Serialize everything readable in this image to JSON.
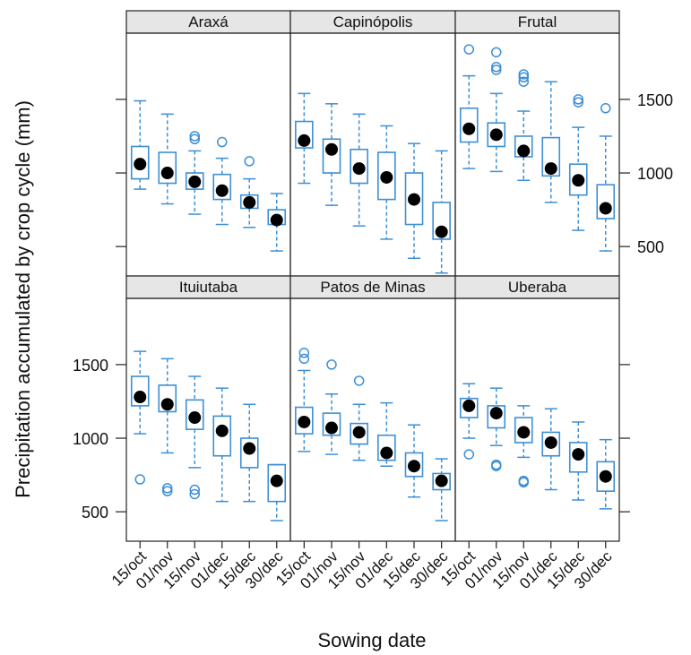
{
  "chart_data": {
    "type": "boxplot",
    "ylabel": "Precipitation accumulated by crop cycle (mm)",
    "xlabel": "Sowing date",
    "categories": [
      "15/oct",
      "01/nov",
      "15/nov",
      "01/dec",
      "15/dec",
      "30/dec"
    ],
    "ylim": [
      300,
      1950
    ],
    "yticks": [
      500,
      1000,
      1500
    ],
    "grid": false,
    "box_color": "#3d8fd6",
    "median_color": "#000000",
    "strip_color": "#e6e6e6",
    "panels": [
      {
        "name": "Araxá",
        "boxes": [
          {
            "q1": 960,
            "q3": 1180,
            "whisker_low": 890,
            "whisker_high": 1490,
            "median": 1060,
            "outliers": []
          },
          {
            "q1": 930,
            "q3": 1140,
            "whisker_low": 790,
            "whisker_high": 1400,
            "median": 1000,
            "outliers": []
          },
          {
            "q1": 890,
            "q3": 1000,
            "whisker_low": 720,
            "whisker_high": 1150,
            "median": 940,
            "outliers": [
              1230,
              1250
            ]
          },
          {
            "q1": 820,
            "q3": 990,
            "whisker_low": 650,
            "whisker_high": 1100,
            "median": 880,
            "outliers": [
              1210
            ]
          },
          {
            "q1": 760,
            "q3": 850,
            "whisker_low": 630,
            "whisker_high": 960,
            "median": 800,
            "outliers": [
              1080
            ]
          },
          {
            "q1": 650,
            "q3": 750,
            "whisker_low": 470,
            "whisker_high": 860,
            "median": 680,
            "outliers": []
          }
        ]
      },
      {
        "name": "Capinópolis",
        "boxes": [
          {
            "q1": 1170,
            "q3": 1350,
            "whisker_low": 930,
            "whisker_high": 1540,
            "median": 1220,
            "outliers": []
          },
          {
            "q1": 1000,
            "q3": 1230,
            "whisker_low": 780,
            "whisker_high": 1470,
            "median": 1160,
            "outliers": []
          },
          {
            "q1": 930,
            "q3": 1160,
            "whisker_low": 640,
            "whisker_high": 1400,
            "median": 1030,
            "outliers": []
          },
          {
            "q1": 820,
            "q3": 1140,
            "whisker_low": 550,
            "whisker_high": 1320,
            "median": 970,
            "outliers": []
          },
          {
            "q1": 650,
            "q3": 1000,
            "whisker_low": 420,
            "whisker_high": 1200,
            "median": 820,
            "outliers": []
          },
          {
            "q1": 550,
            "q3": 800,
            "whisker_low": 320,
            "whisker_high": 1150,
            "median": 600,
            "outliers": []
          }
        ]
      },
      {
        "name": "Frutal",
        "boxes": [
          {
            "q1": 1210,
            "q3": 1440,
            "whisker_low": 1030,
            "whisker_high": 1660,
            "median": 1300,
            "outliers": [
              1840
            ]
          },
          {
            "q1": 1180,
            "q3": 1340,
            "whisker_low": 1010,
            "whisker_high": 1540,
            "median": 1260,
            "outliers": [
              1700,
              1720,
              1820
            ]
          },
          {
            "q1": 1110,
            "q3": 1250,
            "whisker_low": 950,
            "whisker_high": 1420,
            "median": 1150,
            "outliers": [
              1620,
              1650,
              1670
            ]
          },
          {
            "q1": 980,
            "q3": 1240,
            "whisker_low": 800,
            "whisker_high": 1620,
            "median": 1030,
            "outliers": []
          },
          {
            "q1": 850,
            "q3": 1060,
            "whisker_low": 610,
            "whisker_high": 1310,
            "median": 950,
            "outliers": [
              1480,
              1500
            ]
          },
          {
            "q1": 690,
            "q3": 920,
            "whisker_low": 470,
            "whisker_high": 1250,
            "median": 760,
            "outliers": [
              1440
            ]
          }
        ]
      },
      {
        "name": "Ituiutaba",
        "boxes": [
          {
            "q1": 1220,
            "q3": 1420,
            "whisker_low": 1030,
            "whisker_high": 1590,
            "median": 1280,
            "outliers": [
              720
            ]
          },
          {
            "q1": 1180,
            "q3": 1360,
            "whisker_low": 900,
            "whisker_high": 1540,
            "median": 1230,
            "outliers": [
              640,
              660
            ]
          },
          {
            "q1": 1060,
            "q3": 1260,
            "whisker_low": 800,
            "whisker_high": 1420,
            "median": 1140,
            "outliers": [
              620,
              650
            ]
          },
          {
            "q1": 880,
            "q3": 1150,
            "whisker_low": 570,
            "whisker_high": 1340,
            "median": 1050,
            "outliers": []
          },
          {
            "q1": 800,
            "q3": 1000,
            "whisker_low": 570,
            "whisker_high": 1230,
            "median": 930,
            "outliers": []
          },
          {
            "q1": 570,
            "q3": 820,
            "whisker_low": 440,
            "whisker_high": 820,
            "median": 710,
            "outliers": []
          }
        ]
      },
      {
        "name": "Patos de Minas",
        "boxes": [
          {
            "q1": 1030,
            "q3": 1210,
            "whisker_low": 910,
            "whisker_high": 1460,
            "median": 1110,
            "outliers": [
              1540,
              1580
            ]
          },
          {
            "q1": 1020,
            "q3": 1170,
            "whisker_low": 890,
            "whisker_high": 1300,
            "median": 1070,
            "outliers": [
              1500
            ]
          },
          {
            "q1": 960,
            "q3": 1100,
            "whisker_low": 850,
            "whisker_high": 1230,
            "median": 1040,
            "outliers": [
              1390
            ]
          },
          {
            "q1": 850,
            "q3": 1020,
            "whisker_low": 810,
            "whisker_high": 1240,
            "median": 900,
            "outliers": []
          },
          {
            "q1": 740,
            "q3": 900,
            "whisker_low": 600,
            "whisker_high": 1090,
            "median": 810,
            "outliers": []
          },
          {
            "q1": 650,
            "q3": 760,
            "whisker_low": 440,
            "whisker_high": 860,
            "median": 710,
            "outliers": []
          }
        ]
      },
      {
        "name": "Uberaba",
        "boxes": [
          {
            "q1": 1140,
            "q3": 1270,
            "whisker_low": 1000,
            "whisker_high": 1370,
            "median": 1220,
            "outliers": [
              890
            ]
          },
          {
            "q1": 1070,
            "q3": 1220,
            "whisker_low": 950,
            "whisker_high": 1340,
            "median": 1170,
            "outliers": [
              810,
              820
            ]
          },
          {
            "q1": 970,
            "q3": 1140,
            "whisker_low": 870,
            "whisker_high": 1220,
            "median": 1040,
            "outliers": [
              700,
              710
            ]
          },
          {
            "q1": 880,
            "q3": 1040,
            "whisker_low": 650,
            "whisker_high": 1200,
            "median": 970,
            "outliers": []
          },
          {
            "q1": 770,
            "q3": 970,
            "whisker_low": 580,
            "whisker_high": 1110,
            "median": 890,
            "outliers": []
          },
          {
            "q1": 640,
            "q3": 840,
            "whisker_low": 520,
            "whisker_high": 990,
            "median": 740,
            "outliers": []
          }
        ]
      }
    ]
  }
}
